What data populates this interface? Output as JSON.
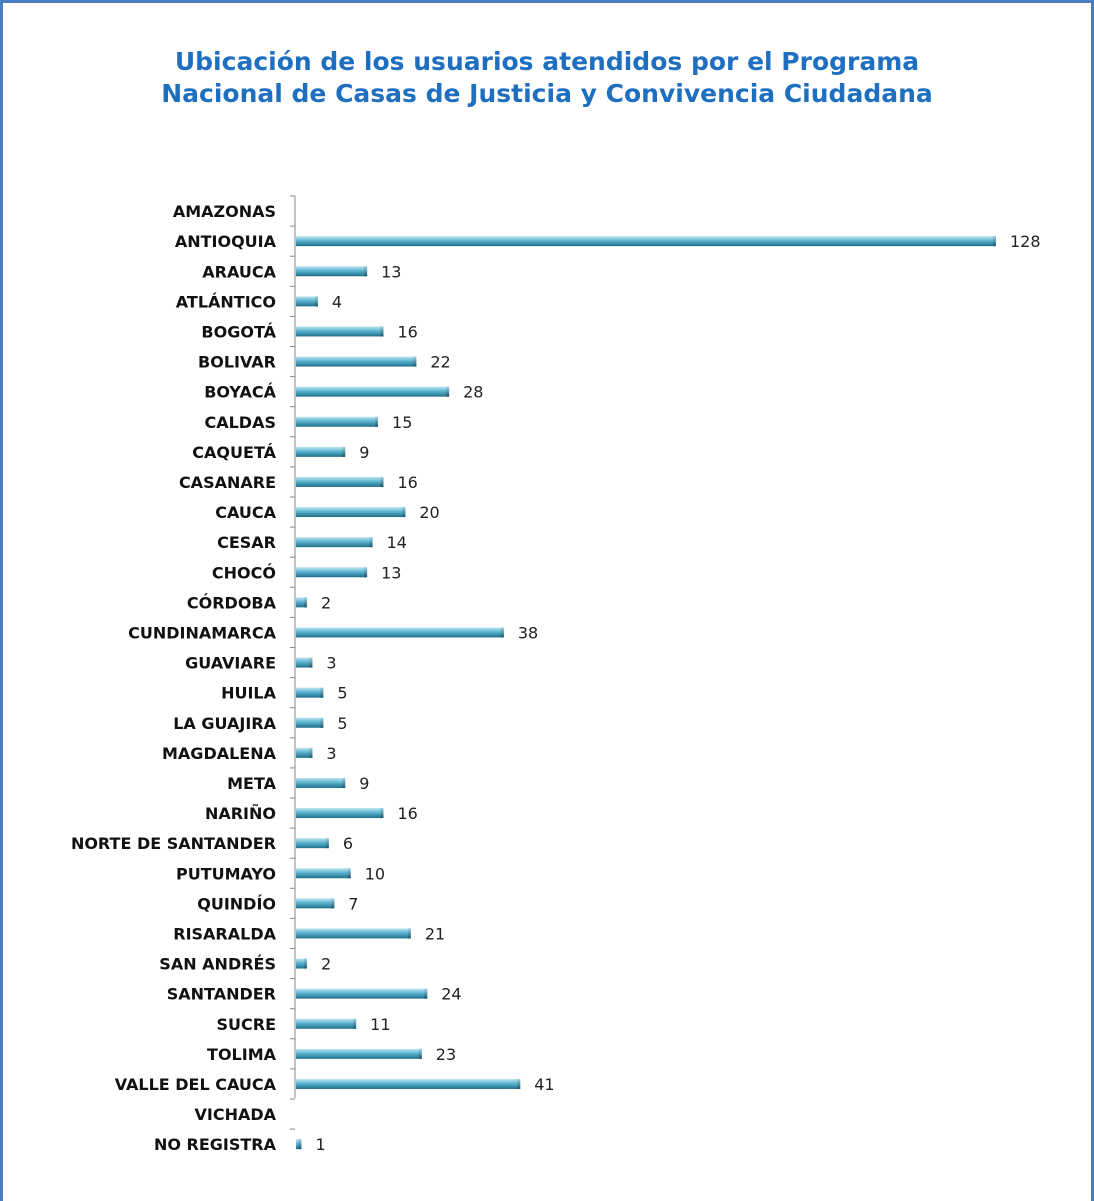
{
  "chart_data": {
    "type": "bar",
    "orientation": "horizontal",
    "title_lines": [
      "Ubicación de los usuarios atendidos por el Programa",
      "Nacional de Casas de Justicia y Convivencia Ciudadana"
    ],
    "categories": [
      "AMAZONAS",
      "ANTIOQUIA",
      "ARAUCA",
      "ATLÁNTICO",
      "BOGOTÁ",
      "BOLIVAR",
      "BOYACÁ",
      "CALDAS",
      "CAQUETÁ",
      "CASANARE",
      "CAUCA",
      "CESAR",
      "CHOCÓ",
      "CÓRDOBA",
      "CUNDINAMARCA",
      "GUAVIARE",
      "HUILA",
      "LA GUAJIRA",
      "MAGDALENA",
      "META",
      "NARIÑO",
      "NORTE DE SANTANDER",
      "PUTUMAYO",
      "QUINDÍO",
      "RISARALDA",
      "SAN ANDRÉS",
      "SANTANDER",
      "SUCRE",
      "TOLIMA",
      "VALLE DEL CAUCA",
      "VICHADA",
      "NO REGISTRA"
    ],
    "values": [
      null,
      128,
      13,
      4,
      16,
      22,
      28,
      15,
      9,
      16,
      20,
      14,
      13,
      2,
      38,
      3,
      5,
      5,
      3,
      9,
      16,
      6,
      10,
      7,
      21,
      2,
      24,
      11,
      23,
      41,
      null,
      1
    ],
    "xlim": [
      0,
      128
    ],
    "grid": false,
    "legend": "none",
    "bar_color": "#4aa8c4"
  }
}
